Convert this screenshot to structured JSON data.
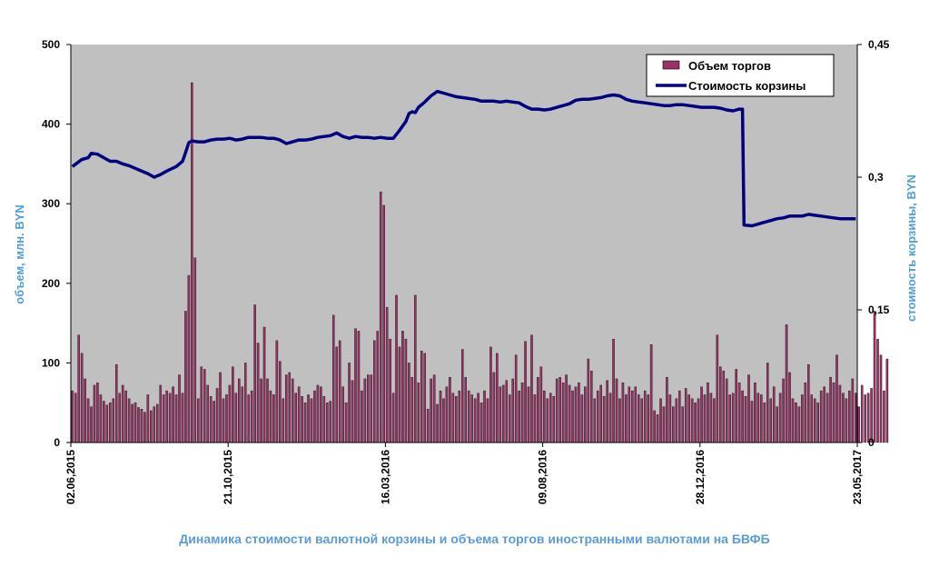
{
  "chart_data": {
    "type": "bar+line",
    "caption": "Динамика стоимости валютной корзины и объема торгов иностранными валютами на БВФБ",
    "left_axis": {
      "label": "объем, млн. BYN",
      "ticks": [
        "0",
        "100",
        "200",
        "300",
        "400",
        "500"
      ],
      "range": [
        0,
        500
      ]
    },
    "right_axis": {
      "label": "стоимость корзины, BYN",
      "ticks": [
        "0",
        "0,15",
        "0,3",
        "0,45"
      ],
      "range": [
        0,
        0.45
      ]
    },
    "x_ticks": [
      "02.06,2015",
      "21.10,2015",
      "16.03,2016",
      "09.08,2016",
      "28.12,2016",
      "23.05,2017"
    ],
    "legend": [
      "Объем торгов",
      "Стоимость корзины"
    ],
    "legend_position": "top-right",
    "colors": {
      "plot_bg": "#c0c0c0",
      "bar": "#993366",
      "line": "#000080",
      "axis_title": "#4f9fd6"
    },
    "n_points": 250,
    "series": [
      {
        "name": "Объем торгов",
        "kind": "bar",
        "axis": "left",
        "values": [
          65,
          62,
          135,
          112,
          80,
          55,
          45,
          72,
          75,
          60,
          52,
          47,
          50,
          55,
          98,
          62,
          72,
          65,
          55,
          48,
          50,
          44,
          42,
          38,
          60,
          40,
          45,
          48,
          72,
          60,
          65,
          62,
          70,
          60,
          85,
          62,
          165,
          210,
          452,
          232,
          55,
          95,
          92,
          72,
          58,
          52,
          68,
          88,
          55,
          60,
          72,
          95,
          62,
          80,
          70,
          100,
          60,
          65,
          173,
          125,
          80,
          145,
          80,
          65,
          60,
          128,
          102,
          55,
          85,
          88,
          80,
          62,
          70,
          58,
          50,
          60,
          55,
          65,
          72,
          70,
          58,
          50,
          52,
          160,
          120,
          128,
          70,
          50,
          100,
          78,
          143,
          140,
          65,
          80,
          85,
          85,
          128,
          140,
          315,
          298,
          170,
          130,
          62,
          185,
          120,
          140,
          130,
          100,
          82,
          185,
          75,
          115,
          112,
          42,
          80,
          85,
          48,
          65,
          55,
          70,
          82,
          62,
          58,
          65,
          117,
          82,
          65,
          60,
          55,
          62,
          50,
          65,
          55,
          120,
          88,
          112,
          70,
          72,
          78,
          60,
          80,
          110,
          65,
          75,
          127,
          70,
          135,
          60,
          82,
          95,
          65,
          55,
          62,
          58,
          80,
          82,
          75,
          85,
          72,
          65,
          70,
          75,
          60,
          70,
          105,
          90,
          55,
          65,
          72,
          58,
          78,
          62,
          130,
          80,
          55,
          75,
          60,
          70,
          65,
          70,
          60,
          55,
          65,
          60,
          123,
          40,
          35,
          55,
          45,
          82,
          60,
          45,
          55,
          65,
          45,
          68,
          60,
          55,
          50,
          55,
          70,
          60,
          75,
          62,
          55,
          135,
          95,
          90,
          80,
          60,
          62,
          92,
          75,
          65,
          58,
          85,
          52,
          75,
          62,
          60,
          50,
          100,
          55,
          70,
          45,
          62,
          80,
          148,
          88,
          55,
          50,
          45,
          60,
          75,
          98,
          60,
          55,
          50,
          65,
          70,
          62,
          82,
          75,
          110,
          72,
          62,
          55,
          65,
          80,
          62,
          45,
          72,
          60,
          62,
          68,
          165,
          130,
          110,
          65,
          105
        ],
        "baseline_values": []
      },
      {
        "name": "Стоимость корзины",
        "kind": "line",
        "axis": "right",
        "points": [
          [
            0,
            0.312
          ],
          [
            3,
            0.32
          ],
          [
            5,
            0.322
          ],
          [
            6,
            0.327
          ],
          [
            8,
            0.326
          ],
          [
            10,
            0.322
          ],
          [
            12,
            0.318
          ],
          [
            14,
            0.318
          ],
          [
            16,
            0.315
          ],
          [
            18,
            0.313
          ],
          [
            20,
            0.31
          ],
          [
            22,
            0.307
          ],
          [
            24,
            0.304
          ],
          [
            26,
            0.3
          ],
          [
            28,
            0.303
          ],
          [
            30,
            0.307
          ],
          [
            33,
            0.312
          ],
          [
            35,
            0.318
          ],
          [
            36,
            0.328
          ],
          [
            37,
            0.339
          ],
          [
            38,
            0.341
          ],
          [
            40,
            0.34
          ],
          [
            42,
            0.34
          ],
          [
            44,
            0.342
          ],
          [
            46,
            0.343
          ],
          [
            48,
            0.343
          ],
          [
            50,
            0.344
          ],
          [
            52,
            0.342
          ],
          [
            54,
            0.343
          ],
          [
            56,
            0.345
          ],
          [
            58,
            0.345
          ],
          [
            60,
            0.345
          ],
          [
            62,
            0.344
          ],
          [
            64,
            0.344
          ],
          [
            66,
            0.342
          ],
          [
            68,
            0.338
          ],
          [
            70,
            0.34
          ],
          [
            72,
            0.342
          ],
          [
            74,
            0.342
          ],
          [
            76,
            0.343
          ],
          [
            78,
            0.345
          ],
          [
            80,
            0.346
          ],
          [
            82,
            0.347
          ],
          [
            84,
            0.35
          ],
          [
            86,
            0.346
          ],
          [
            88,
            0.344
          ],
          [
            90,
            0.346
          ],
          [
            92,
            0.345
          ],
          [
            94,
            0.345
          ],
          [
            96,
            0.344
          ],
          [
            98,
            0.345
          ],
          [
            100,
            0.344
          ],
          [
            102,
            0.344
          ],
          [
            104,
            0.353
          ],
          [
            106,
            0.363
          ],
          [
            107,
            0.372
          ],
          [
            108,
            0.374
          ],
          [
            109,
            0.373
          ],
          [
            110,
            0.379
          ],
          [
            112,
            0.385
          ],
          [
            114,
            0.392
          ],
          [
            116,
            0.397
          ],
          [
            118,
            0.395
          ],
          [
            120,
            0.393
          ],
          [
            122,
            0.391
          ],
          [
            124,
            0.39
          ],
          [
            126,
            0.389
          ],
          [
            128,
            0.388
          ],
          [
            130,
            0.386
          ],
          [
            132,
            0.386
          ],
          [
            134,
            0.386
          ],
          [
            136,
            0.385
          ],
          [
            138,
            0.386
          ],
          [
            140,
            0.385
          ],
          [
            142,
            0.384
          ],
          [
            144,
            0.38
          ],
          [
            146,
            0.377
          ],
          [
            148,
            0.377
          ],
          [
            150,
            0.376
          ],
          [
            152,
            0.377
          ],
          [
            154,
            0.379
          ],
          [
            156,
            0.381
          ],
          [
            158,
            0.383
          ],
          [
            160,
            0.387
          ],
          [
            162,
            0.388
          ],
          [
            164,
            0.388
          ],
          [
            166,
            0.389
          ],
          [
            168,
            0.39
          ],
          [
            170,
            0.392
          ],
          [
            172,
            0.393
          ],
          [
            174,
            0.392
          ],
          [
            176,
            0.388
          ],
          [
            178,
            0.386
          ],
          [
            180,
            0.385
          ],
          [
            182,
            0.384
          ],
          [
            184,
            0.383
          ],
          [
            186,
            0.382
          ],
          [
            188,
            0.381
          ],
          [
            190,
            0.381
          ],
          [
            192,
            0.382
          ],
          [
            194,
            0.382
          ],
          [
            196,
            0.381
          ],
          [
            198,
            0.38
          ],
          [
            200,
            0.379
          ],
          [
            202,
            0.379
          ],
          [
            204,
            0.379
          ],
          [
            206,
            0.378
          ],
          [
            208,
            0.376
          ],
          [
            210,
            0.375
          ],
          [
            212,
            0.377
          ],
          [
            213,
            0.377
          ],
          [
            213.5,
            0.246
          ],
          [
            216,
            0.245
          ],
          [
            218,
            0.247
          ],
          [
            220,
            0.249
          ],
          [
            222,
            0.251
          ],
          [
            224,
            0.253
          ],
          [
            226,
            0.254
          ],
          [
            228,
            0.256
          ],
          [
            230,
            0.256
          ],
          [
            232,
            0.256
          ],
          [
            234,
            0.258
          ],
          [
            236,
            0.257
          ],
          [
            238,
            0.256
          ],
          [
            240,
            0.255
          ],
          [
            242,
            0.254
          ],
          [
            244,
            0.253
          ],
          [
            246,
            0.253
          ],
          [
            248,
            0.253
          ],
          [
            249,
            0.253
          ]
        ]
      }
    ]
  }
}
